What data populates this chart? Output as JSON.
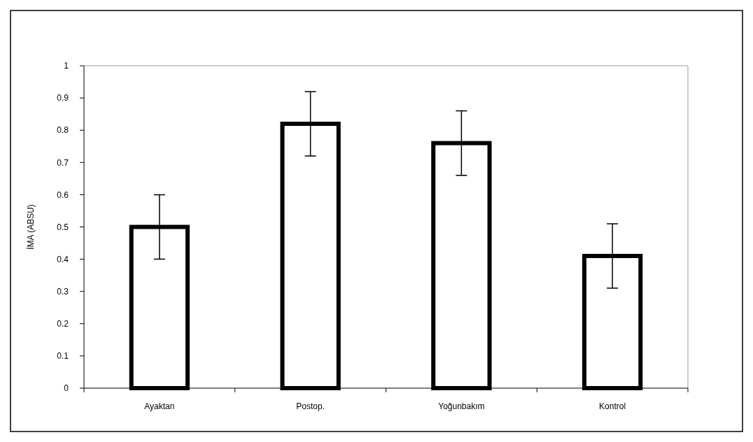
{
  "chart_data": {
    "type": "bar",
    "ylabel": "İMA (ABSU)",
    "categories": [
      "Ayaktan",
      "Postop.",
      "Yoğunbakım",
      "Kontrol"
    ],
    "values": [
      0.5,
      0.82,
      0.76,
      0.41
    ],
    "errors": [
      0.1,
      0.1,
      0.1,
      0.1
    ],
    "color": "#ffffff",
    "ylim": [
      0,
      1
    ],
    "yticks": [
      0,
      {
        "value": 0.1,
        "label": "0.1"
      },
      {
        "value": 0.2,
        "label": "0.2"
      },
      {
        "value": 0.3,
        "label": "0.3"
      },
      {
        "value": 0.4,
        "label": "0.4"
      },
      {
        "value": 0.5,
        "label": "0.5"
      },
      {
        "value": 0.6,
        "label": "0.6"
      },
      {
        "value": 0.7,
        "label": "0.7"
      },
      {
        "value": 0.8,
        "label": "0.8"
      },
      {
        "value": 0.9,
        "label": "0.9"
      },
      1
    ],
    "grid": false
  }
}
